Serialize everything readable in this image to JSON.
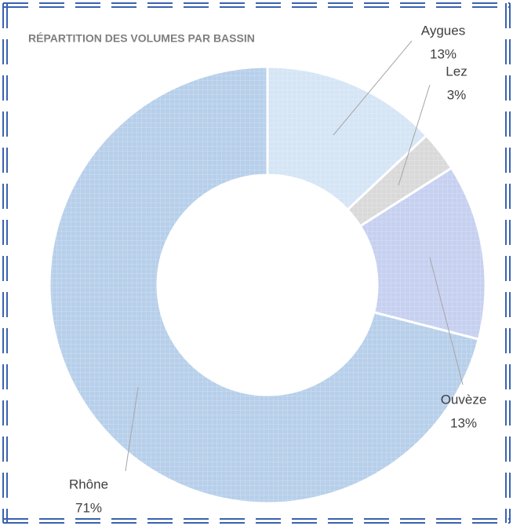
{
  "chart_data": {
    "type": "donut",
    "title": "RÉPARTITION DES VOLUMES PAR BASSIN",
    "categories": [
      "Aygues",
      "Lez",
      "Ouvèze",
      "Rhône"
    ],
    "values": [
      13,
      3,
      13,
      71
    ],
    "value_labels": [
      "13%",
      "3%",
      "13%",
      "71%"
    ],
    "colors": [
      "#d5e5f5",
      "#d9d9d9",
      "#c6d0f0",
      "#b7cfea"
    ]
  }
}
